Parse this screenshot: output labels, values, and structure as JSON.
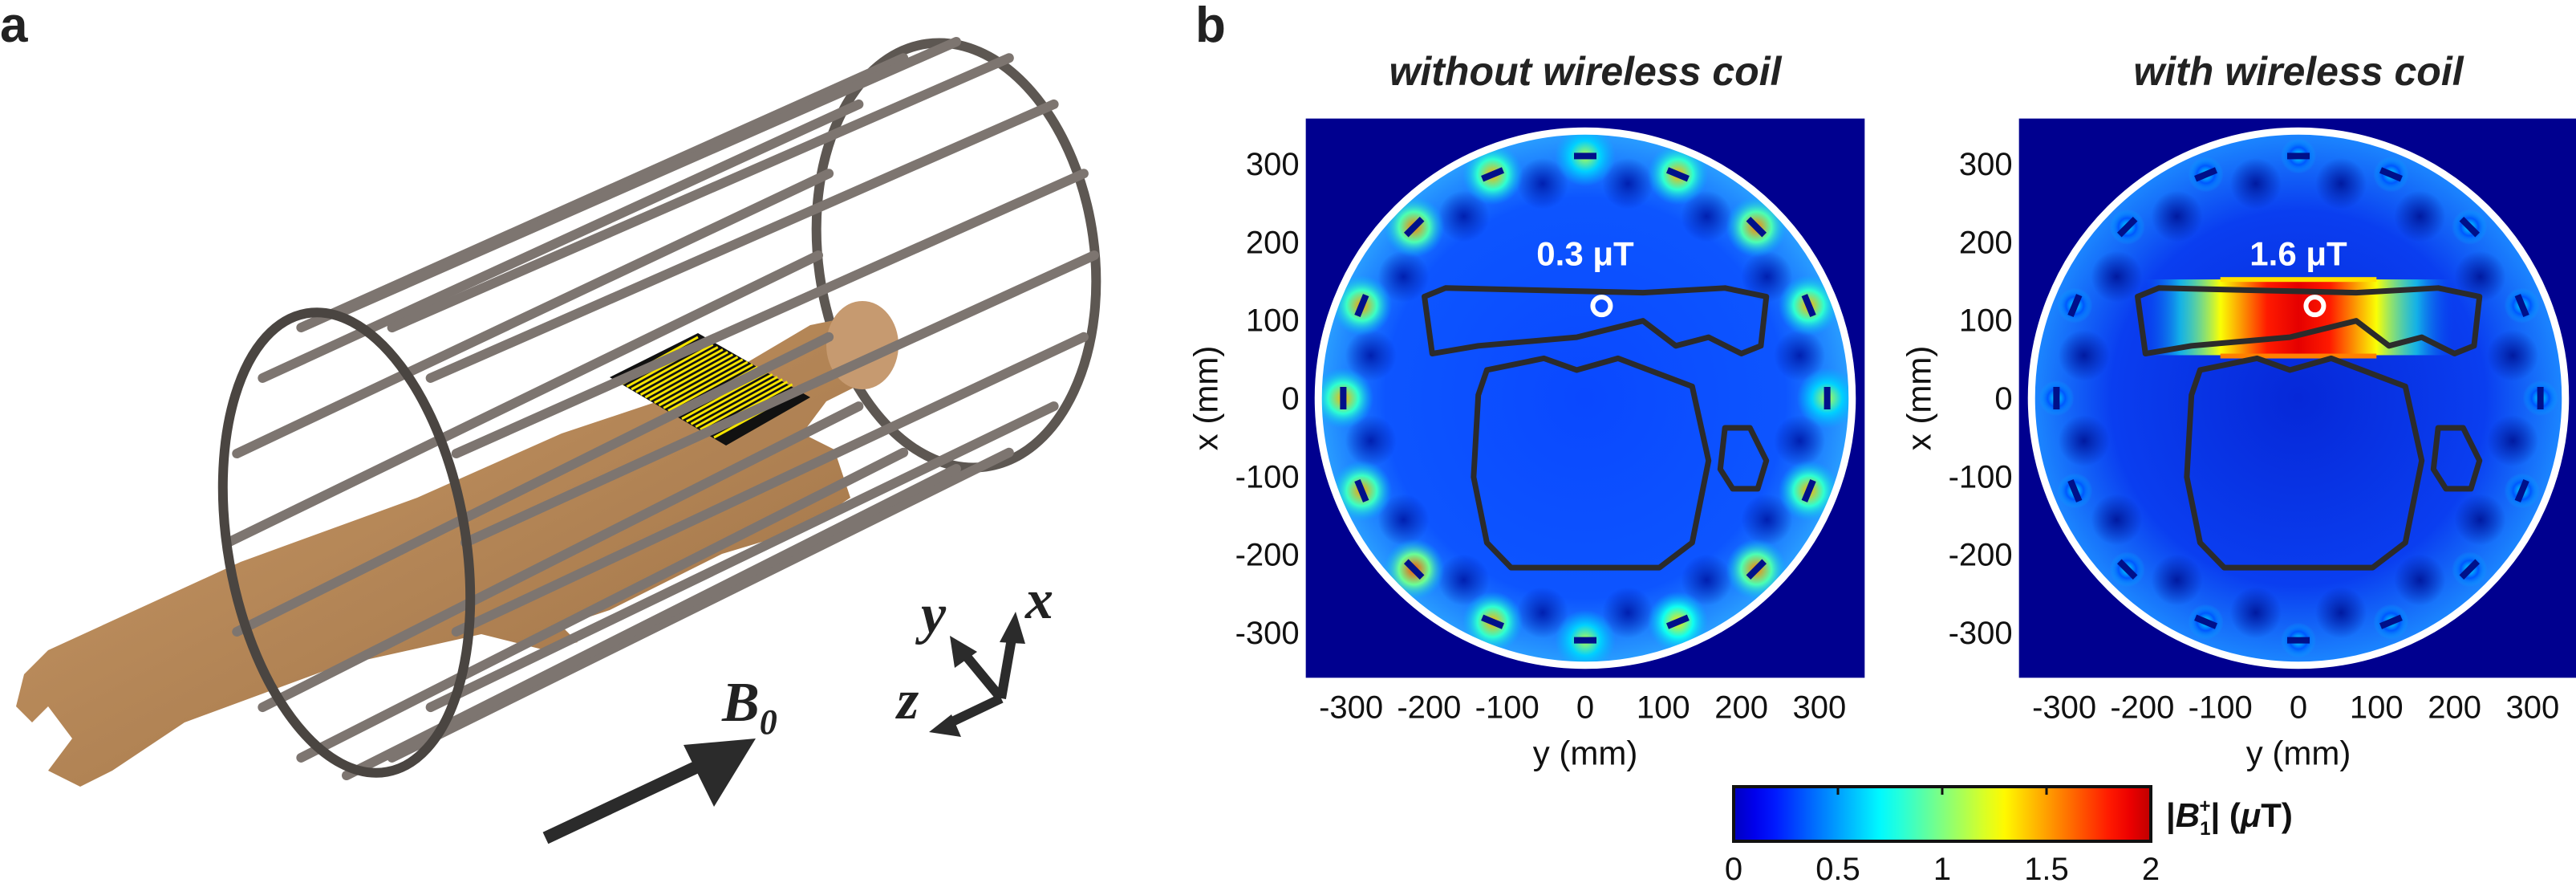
{
  "panel_a": {
    "label": "a",
    "field_label": "B",
    "field_subscript": "0",
    "axes": {
      "x": "x",
      "y": "y",
      "z": "z"
    }
  },
  "panel_b": {
    "label": "b"
  },
  "chart_data": [
    {
      "type": "heatmap",
      "title": "without wireless coil",
      "peak_label": "0.3 μT",
      "xlabel": "y (mm)",
      "ylabel": "x (mm)",
      "xticks": [
        -300,
        -200,
        -100,
        0,
        100,
        200,
        300
      ],
      "yticks": [
        300,
        200,
        100,
        0,
        -100,
        -200,
        -300
      ],
      "xlim": [
        -358,
        358
      ],
      "ylim": [
        -358,
        358
      ],
      "phantom_radius_mm": 342,
      "marker": {
        "y": 21,
        "x": 118
      },
      "peak_value_uT": 0.3,
      "contours": [
        [
          [
            -206,
            130
          ],
          [
            -179,
            141
          ],
          [
            74,
            135
          ],
          [
            179,
            141
          ],
          [
            232,
            130
          ],
          [
            225,
            67
          ],
          [
            200,
            57
          ],
          [
            158,
            78
          ],
          [
            116,
            67
          ],
          [
            74,
            99
          ],
          [
            -11,
            78
          ],
          [
            -137,
            67
          ],
          [
            -196,
            57
          ]
        ],
        [
          [
            -137,
            4
          ],
          [
            -126,
            36
          ],
          [
            -53,
            51
          ],
          [
            -11,
            36
          ],
          [
            42,
            51
          ],
          [
            137,
            15
          ],
          [
            158,
            -80
          ],
          [
            137,
            -185
          ],
          [
            95,
            -217
          ],
          [
            -95,
            -217
          ],
          [
            -126,
            -185
          ],
          [
            -143,
            -101
          ]
        ],
        [
          [
            179,
            -38
          ],
          [
            211,
            -38
          ],
          [
            232,
            -80
          ],
          [
            221,
            -116
          ],
          [
            189,
            -116
          ],
          [
            173,
            -91
          ]
        ]
      ]
    },
    {
      "type": "heatmap",
      "title": "with wireless coil",
      "peak_label": "1.6 μT",
      "xlabel": "y (mm)",
      "ylabel": "x (mm)",
      "xticks": [
        -300,
        -200,
        -100,
        0,
        100,
        200,
        300
      ],
      "yticks": [
        300,
        200,
        100,
        0,
        -100,
        -200,
        -300
      ],
      "xlim": [
        -358,
        358
      ],
      "ylim": [
        -358,
        358
      ],
      "phantom_radius_mm": 342,
      "marker": {
        "y": 21,
        "x": 118
      },
      "peak_value_uT": 1.6,
      "contours": [
        [
          [
            -206,
            130
          ],
          [
            -179,
            141
          ],
          [
            74,
            135
          ],
          [
            179,
            141
          ],
          [
            232,
            130
          ],
          [
            225,
            67
          ],
          [
            200,
            57
          ],
          [
            158,
            78
          ],
          [
            116,
            67
          ],
          [
            74,
            99
          ],
          [
            -11,
            78
          ],
          [
            -137,
            67
          ],
          [
            -196,
            57
          ]
        ],
        [
          [
            -137,
            4
          ],
          [
            -126,
            36
          ],
          [
            -53,
            51
          ],
          [
            -11,
            36
          ],
          [
            42,
            51
          ],
          [
            137,
            15
          ],
          [
            158,
            -80
          ],
          [
            137,
            -185
          ],
          [
            95,
            -217
          ],
          [
            -95,
            -217
          ],
          [
            -126,
            -185
          ],
          [
            -143,
            -101
          ]
        ],
        [
          [
            179,
            -38
          ],
          [
            211,
            -38
          ],
          [
            232,
            -80
          ],
          [
            221,
            -116
          ],
          [
            189,
            -116
          ],
          [
            173,
            -91
          ]
        ]
      ]
    }
  ],
  "colorbar": {
    "range": [
      0,
      2
    ],
    "ticks": [
      "0",
      "0.5",
      "1",
      "1.5",
      "2"
    ],
    "label": "|B1+| (μT)",
    "label_parts": [
      "|",
      "B",
      "1",
      "+",
      "| (",
      "μ",
      "T)"
    ],
    "colormap": "jet"
  },
  "colors": {
    "outside": "#00008f",
    "contour": "#2b2b2b",
    "cage": "#8a827c",
    "skin": "#b8895a",
    "coil": "#f5e400"
  }
}
